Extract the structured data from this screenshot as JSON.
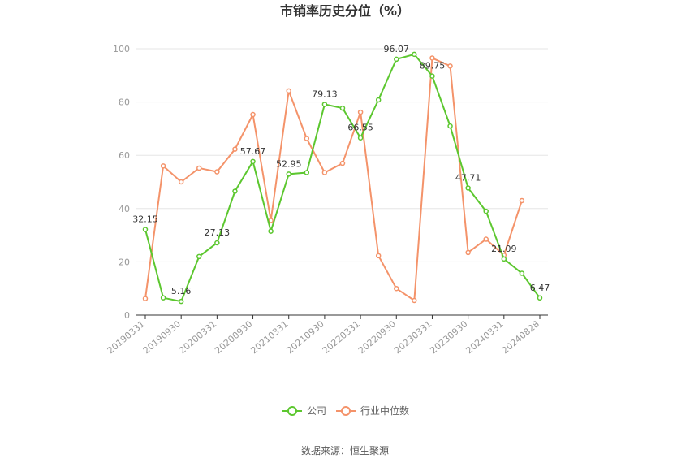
{
  "chart_data": {
    "type": "line",
    "title": "市销率历史分位（%）",
    "source": "数据来源：恒生聚源",
    "ylim": [
      0,
      100
    ],
    "yticks": [
      0,
      20,
      40,
      60,
      80,
      100
    ],
    "x": [
      "20190331",
      "20190630",
      "20190930",
      "20191231",
      "20200331",
      "20200630",
      "20200930",
      "20201231",
      "20210331",
      "20210630",
      "20210930",
      "20211231",
      "20220331",
      "20220630",
      "20220930",
      "20221231",
      "20230331",
      "20230630",
      "20230930",
      "20231231",
      "20240331",
      "20240630",
      "20240828"
    ],
    "xtick_labels": [
      "20190331",
      "20190930",
      "20200331",
      "20200930",
      "20210331",
      "20210930",
      "20220331",
      "20220930",
      "20230331",
      "20230930",
      "20240331",
      "20240828"
    ],
    "legend_position": "bottom",
    "grid": true,
    "series": [
      {
        "name": "公司",
        "color": "#5cc72f",
        "values": [
          32.15,
          6.5,
          5.16,
          22.0,
          27.13,
          46.5,
          57.67,
          31.5,
          52.95,
          53.5,
          79.13,
          77.7,
          66.55,
          80.8,
          96.07,
          97.9,
          89.75,
          71.0,
          47.71,
          39.0,
          21.09,
          15.7,
          6.47
        ],
        "labeled": {
          "0": "32.15",
          "2": "5.16",
          "4": "27.13",
          "6": "57.67",
          "8": "52.95",
          "10": "79.13",
          "12": "66.55",
          "14": "96.07",
          "16": "89.75",
          "18": "47.71",
          "20": "21.09",
          "22": "6.47"
        }
      },
      {
        "name": "行业中位数",
        "color": "#f4936a",
        "values": [
          6.2,
          56.0,
          50.0,
          55.2,
          53.8,
          62.3,
          75.3,
          35.5,
          84.2,
          66.3,
          53.5,
          57.0,
          76.2,
          22.3,
          10.0,
          5.5,
          96.5,
          93.5,
          23.5,
          28.5,
          22.5,
          43.0,
          null
        ]
      }
    ]
  }
}
